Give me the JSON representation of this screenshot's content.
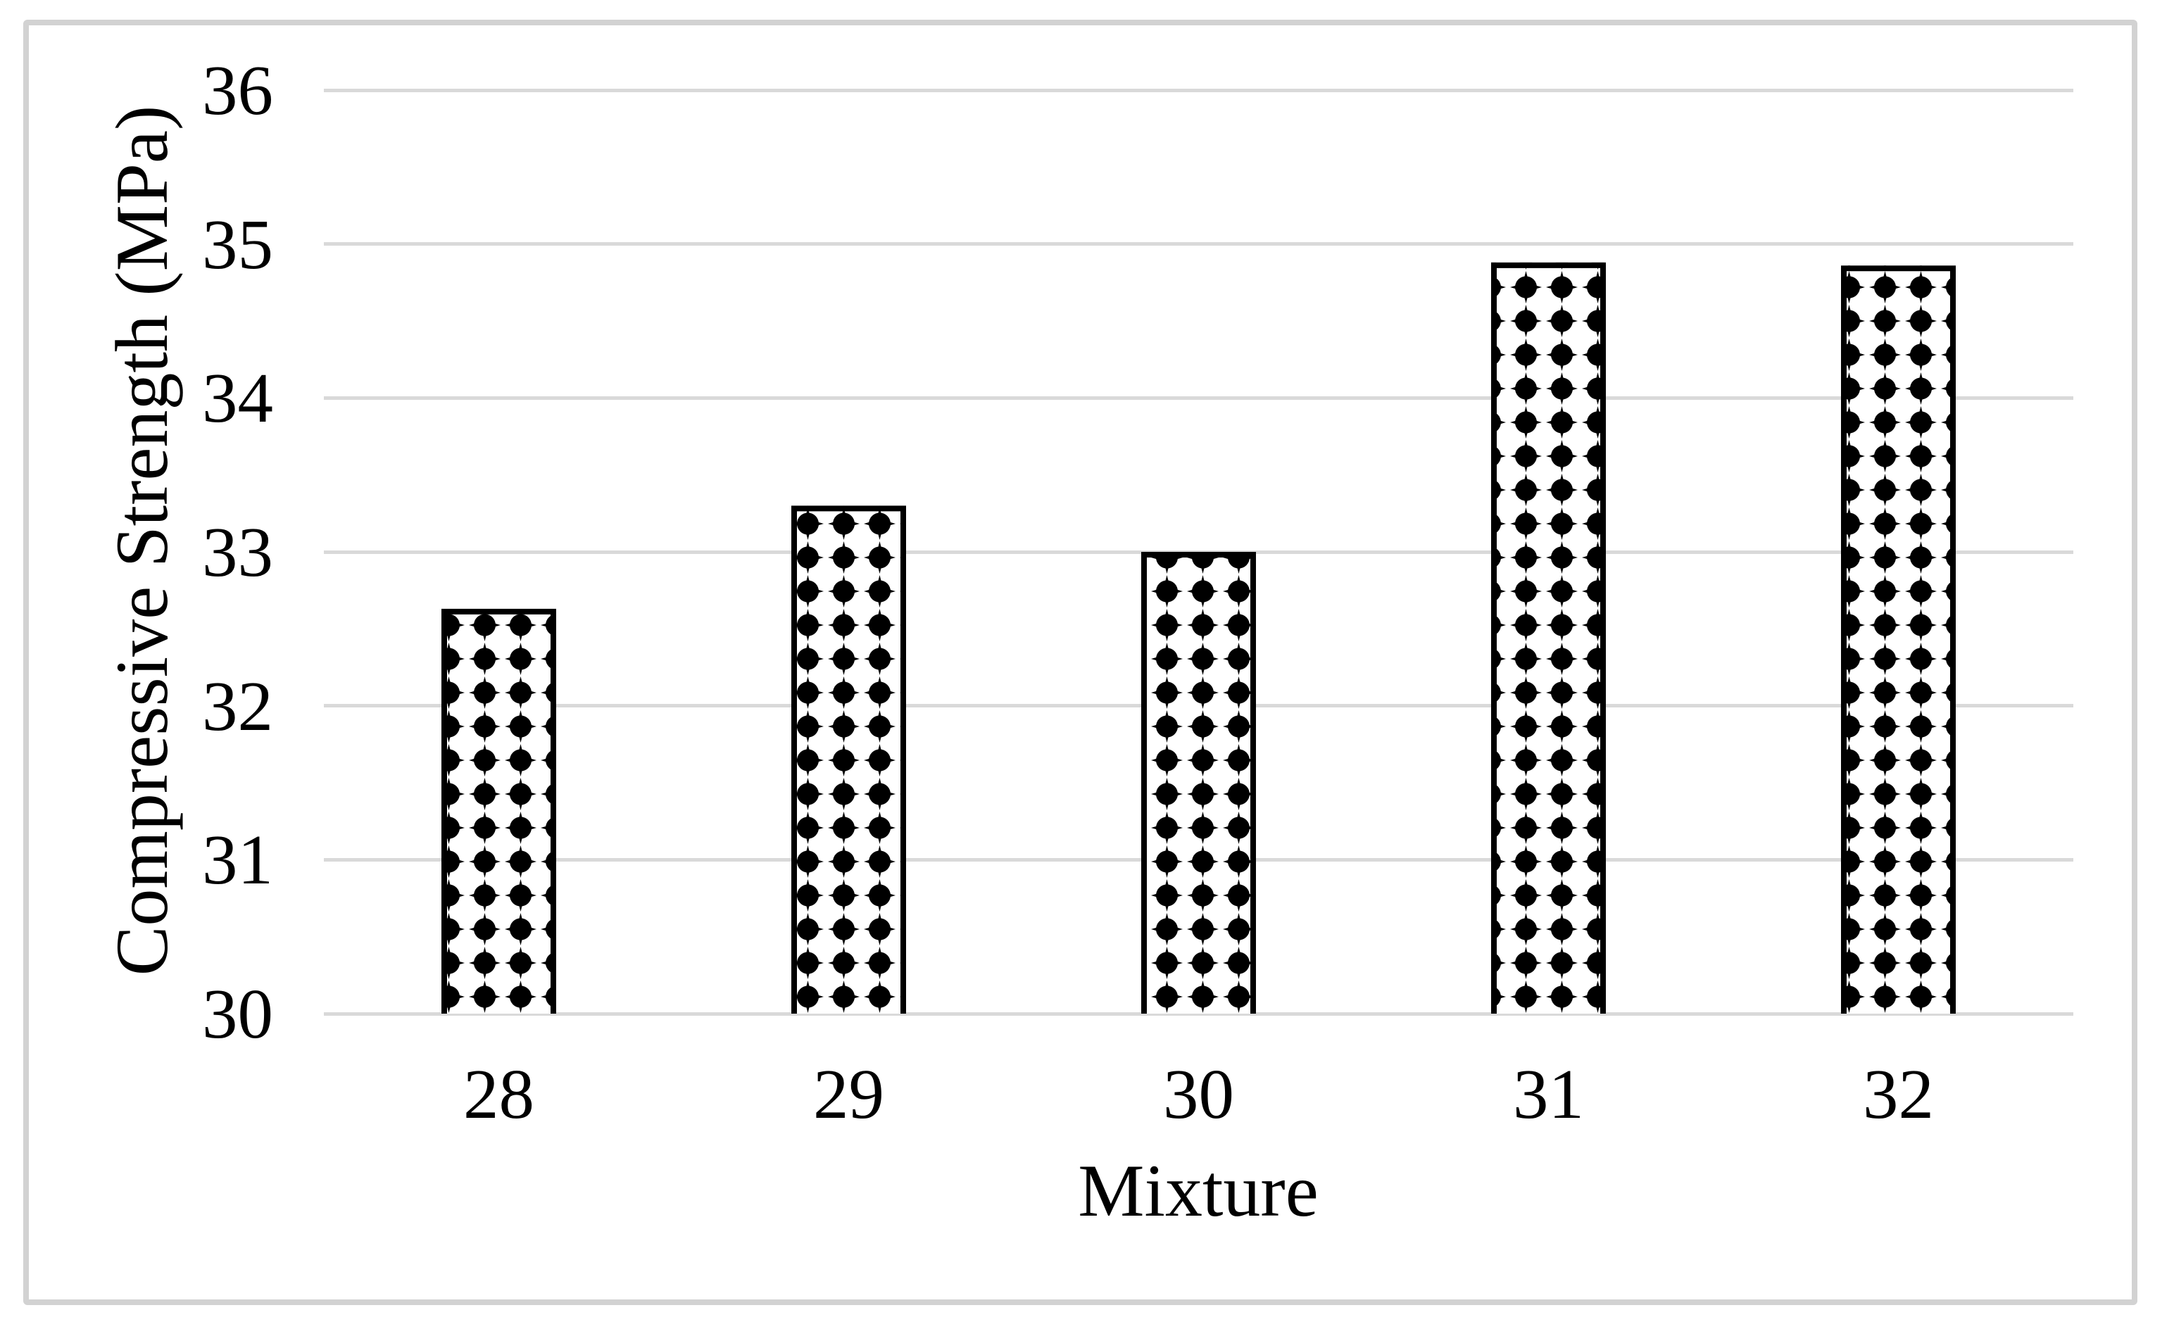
{
  "figure": {
    "background_color": "#ffffff",
    "frame_border_color": "#d2d2d2",
    "text_color": "#000000"
  },
  "chart_data": {
    "type": "bar",
    "title": "",
    "xlabel": "Mixture",
    "ylabel": "Compressive Strength (MPa)",
    "categories": [
      "28",
      "29",
      "30",
      "31",
      "32"
    ],
    "values": [
      32.63,
      33.3,
      33.0,
      34.88,
      34.86
    ],
    "ylim": [
      30,
      36
    ],
    "yticks": [
      30,
      31,
      32,
      33,
      34,
      35,
      36
    ],
    "ytick_labels": [
      "30",
      "31",
      "32",
      "33",
      "34",
      "35",
      "36"
    ],
    "grid": "horizontal",
    "gridline_color": "#d9d9d9",
    "legend": "none",
    "bar_style": {
      "fill_pattern": "dotted-diamond-grid",
      "pattern_color": "#000000",
      "background_color": "#ffffff",
      "border_color": "#000000"
    }
  }
}
